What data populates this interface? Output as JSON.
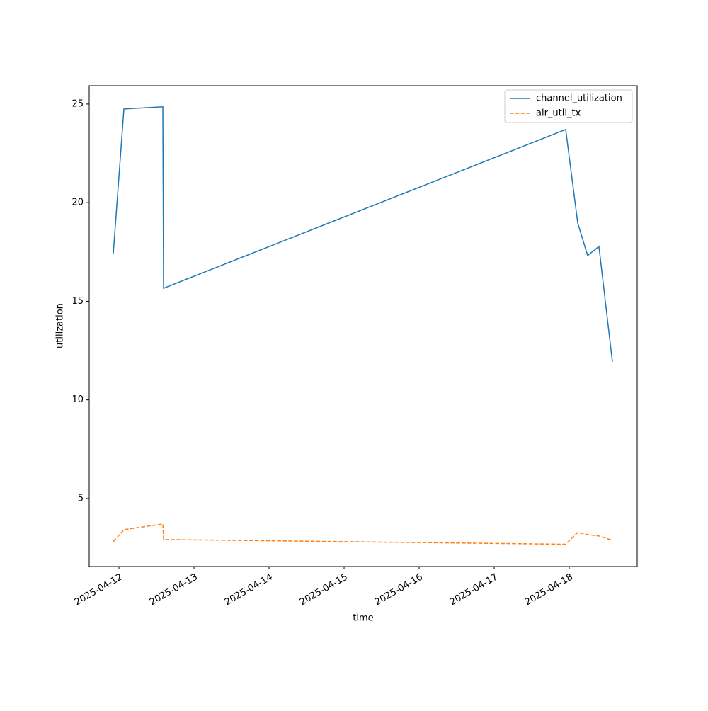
{
  "chart_data": {
    "type": "line",
    "x_label": "time",
    "y_label": "utilization",
    "x": [
      "2025-04-11T22:11",
      "2025-04-12T01:35",
      "2025-04-12T14:02",
      "2025-04-12T14:16",
      "2025-04-17T22:52",
      "2025-04-18T02:43",
      "2025-04-18T05:53",
      "2025-04-18T09:30",
      "2025-04-18T13:48"
    ],
    "series": [
      {
        "name": "channel_utilization",
        "color": "#1f77b4",
        "dash": "solid",
        "values": [
          17.42,
          24.75,
          24.86,
          15.66,
          23.71,
          18.97,
          17.32,
          17.78,
          11.93
        ]
      },
      {
        "name": "air_util_tx",
        "color": "#ff7f0e",
        "dash": "dashed",
        "values": [
          2.81,
          3.42,
          3.71,
          2.92,
          2.68,
          3.28,
          3.17,
          3.1,
          2.88
        ]
      }
    ],
    "xlim": [
      "2025-04-11T14:29",
      "2025-04-18T21:44"
    ],
    "xticks": [
      "2025-04-12",
      "2025-04-13",
      "2025-04-14",
      "2025-04-15",
      "2025-04-16",
      "2025-04-17",
      "2025-04-18"
    ],
    "ylim": [
      1.55,
      25.93
    ],
    "yticks": [
      5,
      10,
      15,
      20,
      25
    ],
    "grid": false,
    "legend": "upper-right"
  }
}
